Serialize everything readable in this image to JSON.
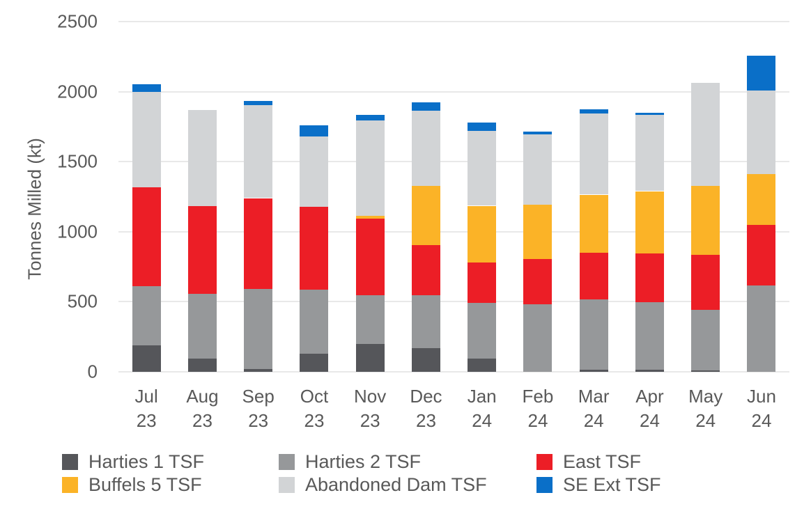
{
  "chart_data": {
    "type": "bar",
    "stacked": true,
    "title": "",
    "xlabel": "",
    "ylabel": "Tonnes Milled (kt)",
    "ylim": [
      0,
      2500
    ],
    "yticks": [
      0,
      500,
      1000,
      1500,
      2000,
      2500
    ],
    "grid": "horizontal",
    "grid_color": "#e8e8e8",
    "text_color": "#595959",
    "legend_position": "bottom",
    "categories": [
      "Jul 23",
      "Aug 23",
      "Sep 23",
      "Oct 23",
      "Nov 23",
      "Dec 23",
      "Jan 24",
      "Feb 24",
      "Mar 24",
      "Apr 24",
      "May 24",
      "Jun 24"
    ],
    "series": [
      {
        "name": "Harties 1 TSF",
        "color": "#55565a",
        "values": [
          190,
          95,
          20,
          130,
          200,
          170,
          95,
          0,
          15,
          15,
          10,
          0
        ]
      },
      {
        "name": "Harties 2 TSF",
        "color": "#96989a",
        "values": [
          420,
          460,
          570,
          455,
          345,
          375,
          395,
          480,
          500,
          480,
          435,
          615
        ]
      },
      {
        "name": "East TSF",
        "color": "#ec1e26",
        "values": [
          705,
          630,
          650,
          595,
          550,
          360,
          290,
          325,
          335,
          350,
          390,
          435
        ]
      },
      {
        "name": "Buffels 5 TSF",
        "color": "#fbb327",
        "values": [
          0,
          0,
          0,
          0,
          20,
          420,
          405,
          390,
          415,
          445,
          490,
          360
        ]
      },
      {
        "name": "Abandoned Dam TSF",
        "color": "#d2d4d6",
        "values": [
          685,
          685,
          665,
          500,
          680,
          540,
          535,
          500,
          580,
          545,
          740,
          600
        ]
      },
      {
        "name": "SE Ext TSF",
        "color": "#0a6fc8",
        "values": [
          55,
          0,
          30,
          80,
          40,
          60,
          60,
          20,
          30,
          15,
          0,
          245
        ]
      }
    ],
    "totals": [
      2055,
      1870,
      1935,
      1760,
      1835,
      1925,
      1780,
      1715,
      1875,
      1850,
      2065,
      2255
    ],
    "legend_columns": [
      [
        "Harties 1 TSF",
        "Buffels 5 TSF"
      ],
      [
        "Harties 2 TSF",
        "Abandoned Dam TSF"
      ],
      [
        "East TSF",
        "SE Ext TSF"
      ]
    ]
  }
}
